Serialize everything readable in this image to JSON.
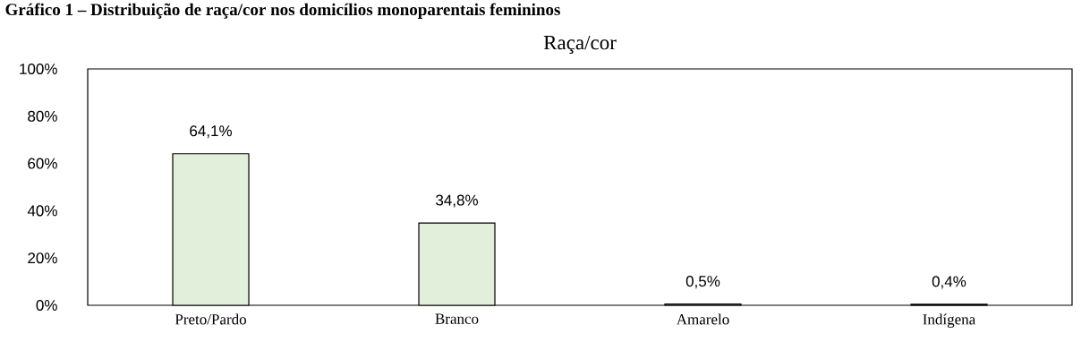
{
  "chart_data": {
    "type": "bar",
    "title": "Raça/cor",
    "annotations": [
      "Gráfico 1 – Distribuição de raça/cor nos domicílios monoparentais femininos"
    ],
    "categories": [
      "Preto/Pardo",
      "Branco",
      "Amarelo",
      "Indígena"
    ],
    "values": [
      64.1,
      34.8,
      0.5,
      0.4
    ],
    "value_labels": [
      "64,1%",
      "34,8%",
      "0,5%",
      "0,4%"
    ],
    "color": "#e2efda",
    "ylim": [
      0,
      100
    ],
    "yticks": [
      {
        "value": 0,
        "label": "0%"
      },
      {
        "value": 20,
        "label": "20%"
      },
      {
        "value": 40,
        "label": "40%"
      },
      {
        "value": 60,
        "label": "60%"
      },
      {
        "value": 80,
        "label": "80%"
      },
      {
        "value": 100,
        "label": "100%"
      }
    ]
  }
}
